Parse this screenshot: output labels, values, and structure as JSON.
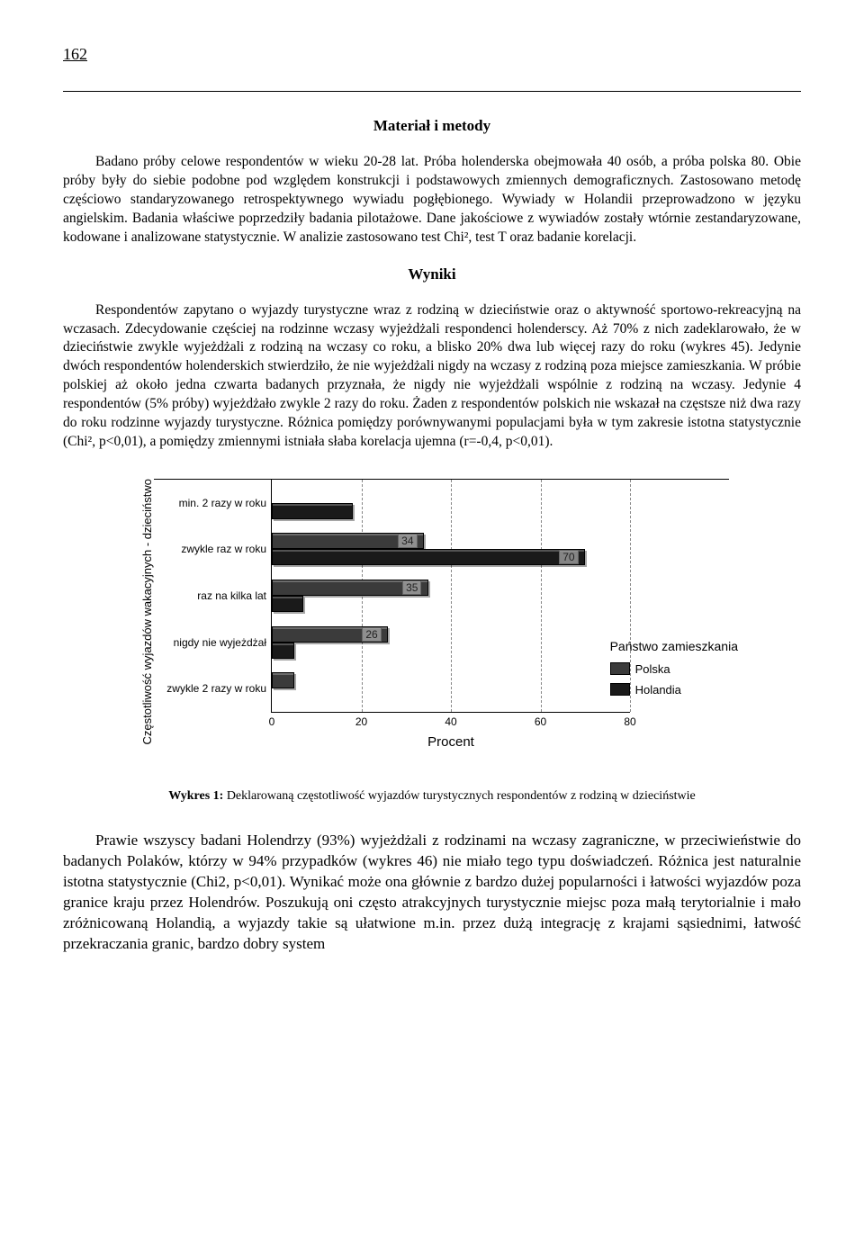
{
  "page_number": "162",
  "section1_title": "Materiał i metody",
  "para1": "Badano próby celowe respondentów w wieku 20-28 lat. Próba holenderska obejmowała 40 osób, a próba polska 80. Obie próby były do siebie podobne pod względem konstrukcji i podstawowych zmiennych demograficznych. Zastosowano metodę częściowo standaryzowanego retrospektywnego wywiadu pogłębionego. Wywiady w Holandii przeprowadzono w języku angielskim. Badania właściwe poprzedziły badania pilotażowe. Dane jakościowe z wywiadów zostały wtórnie zestandaryzowane, kodowane i analizowane statystycznie. W analizie zastosowano test Chi², test T oraz badanie korelacji.",
  "section2_title": "Wyniki",
  "para2": "Respondentów zapytano o wyjazdy turystyczne wraz z rodziną w dzieciństwie oraz o aktywność sportowo-rekreacyjną na wczasach. Zdecydowanie częściej na rodzinne wczasy wyjeżdżali respondenci holenderscy. Aż 70% z nich zadeklarowało, że w dzieciństwie zwykle wyjeżdżali z rodziną na wczasy co roku, a blisko 20% dwa lub więcej razy do roku (wykres 45). Jedynie dwóch respondentów holenderskich stwierdziło, że nie wyjeżdżali nigdy na wczasy z rodziną poza miejsce zamieszkania. W próbie polskiej aż około jedna czwarta badanych przyznała, że nigdy nie wyjeżdżali wspólnie z rodziną na wczasy. Jedynie 4 respondentów (5% próby) wyjeżdżało zwykle 2 razy do roku. Żaden z respondentów polskich nie wskazał na częstsze niż dwa razy do roku rodzinne wyjazdy turystyczne. Różnica pomiędzy porównywanymi populacjami była w tym zakresie istotna statystycznie (Chi², p<0,01), a pomiędzy zmiennymi istniała słaba korelacja ujemna (r=-0,4, p<0,01).",
  "chart": {
    "type": "horizontal_grouped_bar",
    "yaxis_label": "Częstotliwość wyjazdów wakacyjnych - dzieciństwo",
    "xaxis_label": "Procent",
    "categories": [
      "min. 2 razy w roku",
      "zwykle raz w roku",
      "raz na kilka lat",
      "nigdy nie wyjeżdżał",
      "zwykle 2 razy w roku"
    ],
    "series": [
      {
        "name": "Polska",
        "color": "#3b3b3b",
        "values": [
          0,
          34,
          35,
          26,
          5
        ]
      },
      {
        "name": "Holandia",
        "color": "#1a1a1a",
        "values": [
          18,
          70,
          7,
          5,
          0
        ]
      }
    ],
    "value_labels_shown": [
      "34",
      "70",
      "35",
      "26"
    ],
    "xlim": [
      0,
      80
    ],
    "xtick_step": 20,
    "legend_title": "Państwo zamieszkania",
    "legend_items": [
      {
        "label": "Polska",
        "color": "#3b3b3b"
      },
      {
        "label": "Holandia",
        "color": "#1a1a1a"
      }
    ],
    "grid_color": "#888888",
    "background_color": "#ffffff",
    "label_font": "Arial",
    "label_fontsize": 12
  },
  "caption_prefix": "Wykres 1:",
  "caption_text": " Deklarowaną częstotliwość wyjazdów turystycznych respondentów z rodziną w dzieciństwie",
  "para3": "Prawie wszyscy badani Holendrzy (93%) wyjeżdżali z rodzinami na wczasy zagraniczne, w przeciwieństwie do badanych Polaków, którzy w 94% przypadków (wykres 46) nie miało tego typu doświadczeń. Różnica jest naturalnie istotna statystycznie (Chi2, p<0,01). Wynikać może ona głównie z bardzo dużej popularności i łatwości wyjazdów poza granice kraju przez Holendrów. Poszukują oni często atrakcyjnych turystycznie miejsc poza małą terytorialnie i mało zróżnicowaną Holandią, a wyjazdy takie są ułatwione m.in. przez dużą integrację z krajami sąsiednimi, łatwość przekraczania granic, bardzo dobry system"
}
